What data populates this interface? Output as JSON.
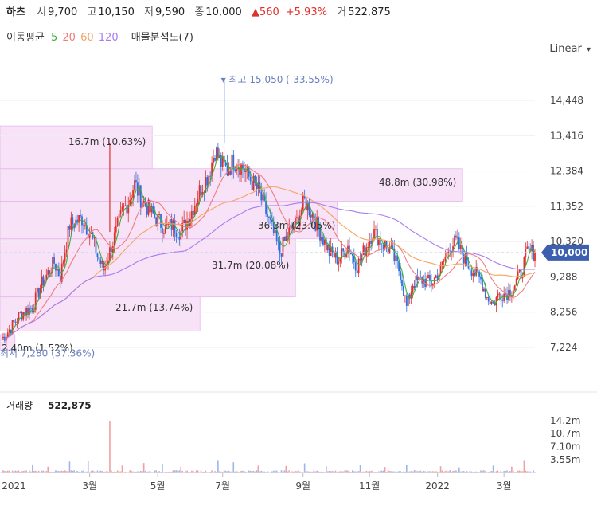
{
  "header": {
    "name": "하츠",
    "open_label": "시",
    "open": "9,700",
    "high_label": "고",
    "high": "10,150",
    "low_label": "저",
    "low": "9,590",
    "close_label": "종",
    "close": "10,000",
    "change": "▲560",
    "change_pct": "+5.93%",
    "volume_label": "거",
    "volume": "522,875"
  },
  "ma_legend": {
    "label": "이동평균",
    "periods": [
      "5",
      "20",
      "60",
      "120"
    ],
    "colors": [
      "#3fae3f",
      "#f07c7c",
      "#f4a460",
      "#a97bf0"
    ],
    "profile_label": "매물분석도(7)"
  },
  "scale_mode": "Linear",
  "colors": {
    "up": "#e0302b",
    "down": "#2f6fe0",
    "profile": "#f4d8f4",
    "current_badge": "#3d5fb0"
  },
  "chart_data": {
    "type": "candlestick",
    "y_ticks": [
      "14,448",
      "13,416",
      "12,384",
      "11,352",
      "10,320",
      "9,288",
      "8,256",
      "7,224"
    ],
    "y_tick_values": [
      14448,
      13416,
      12384,
      11352,
      10320,
      9288,
      8256,
      7224
    ],
    "x_ticks": [
      "2021",
      "3월",
      "5월",
      "7월",
      "9월",
      "11월",
      "2022",
      "3월"
    ],
    "x_tick_index": [
      8,
      57,
      101,
      143,
      195,
      238,
      282,
      325
    ],
    "current_price": "10,000",
    "current_value": 10000,
    "high_annotation": "최고 15,050 (-33.55%)",
    "high_value": 15050,
    "low_annotation": "최저 7,280 (37.36%)",
    "low_value": 7280,
    "volume_title": "거래량",
    "volume_value": "522,875",
    "volume_ticks": [
      "14.2m",
      "10.7m",
      "7.10m",
      "3.55m"
    ],
    "volume_tick_values": [
      14.2,
      10.7,
      7.1,
      3.55
    ],
    "volume_profile": [
      {
        "label": "2.40m (1.52%)",
        "price_low": 7150,
        "price_high": 7600,
        "width": 0.025
      },
      {
        "label": "21.7m (13.74%)",
        "price_low": 7700,
        "price_high": 8700,
        "width": 0.335
      },
      {
        "label": "31.7m (20.08%)",
        "price_low": 8700,
        "price_high": 10400,
        "width": 0.495
      },
      {
        "label": "36.3m (23.05%)",
        "price_low": 10400,
        "price_high": 11500,
        "width": 0.565
      },
      {
        "label": "48.8m (30.98%)",
        "price_low": 11500,
        "price_high": 12450,
        "width": 0.775
      },
      {
        "label": "16.7m (10.63%)",
        "price_low": 12450,
        "price_high": 13700,
        "width": 0.255
      }
    ],
    "close_series": [
      [
        0,
        7450
      ],
      [
        6,
        7800
      ],
      [
        12,
        8200
      ],
      [
        20,
        8400
      ],
      [
        26,
        9100
      ],
      [
        34,
        9700
      ],
      [
        38,
        9300
      ],
      [
        44,
        10800
      ],
      [
        52,
        11000
      ],
      [
        58,
        10500
      ],
      [
        62,
        9900
      ],
      [
        66,
        9500
      ],
      [
        72,
        10300
      ],
      [
        78,
        11200
      ],
      [
        82,
        11500
      ],
      [
        86,
        12000
      ],
      [
        90,
        11600
      ],
      [
        96,
        11200
      ],
      [
        102,
        10900
      ],
      [
        106,
        10700
      ],
      [
        110,
        10800
      ],
      [
        116,
        10600
      ],
      [
        122,
        11100
      ],
      [
        128,
        11800
      ],
      [
        134,
        12300
      ],
      [
        138,
        13000
      ],
      [
        142,
        12600
      ],
      [
        146,
        12400
      ],
      [
        150,
        12700
      ],
      [
        156,
        12500
      ],
      [
        160,
        12200
      ],
      [
        166,
        11800
      ],
      [
        170,
        11300
      ],
      [
        174,
        10800
      ],
      [
        180,
        10000
      ],
      [
        186,
        10600
      ],
      [
        190,
        10800
      ],
      [
        196,
        11500
      ],
      [
        200,
        11200
      ],
      [
        206,
        10600
      ],
      [
        212,
        10000
      ],
      [
        218,
        9800
      ],
      [
        224,
        10200
      ],
      [
        230,
        9600
      ],
      [
        236,
        10200
      ],
      [
        240,
        10600
      ],
      [
        246,
        10300
      ],
      [
        252,
        10000
      ],
      [
        258,
        9400
      ],
      [
        262,
        8400
      ],
      [
        266,
        9100
      ],
      [
        272,
        9200
      ],
      [
        278,
        9100
      ],
      [
        284,
        9500
      ],
      [
        290,
        10200
      ],
      [
        294,
        10300
      ],
      [
        300,
        9800
      ],
      [
        306,
        9400
      ],
      [
        310,
        9200
      ],
      [
        314,
        8700
      ],
      [
        318,
        8500
      ],
      [
        322,
        8800
      ],
      [
        326,
        8800
      ],
      [
        330,
        8900
      ],
      [
        336,
        9400
      ],
      [
        340,
        10000
      ]
    ],
    "volume_spikes": [
      [
        20,
        2.2
      ],
      [
        30,
        1.6
      ],
      [
        44,
        3.0
      ],
      [
        56,
        3.2
      ],
      [
        70,
        14.2
      ],
      [
        78,
        1.9
      ],
      [
        92,
        2.6
      ],
      [
        104,
        2.4
      ],
      [
        116,
        1.6
      ],
      [
        140,
        3.4
      ],
      [
        150,
        2.8
      ],
      [
        166,
        1.9
      ],
      [
        184,
        1.8
      ],
      [
        196,
        2.5
      ],
      [
        210,
        1.7
      ],
      [
        232,
        2.1
      ],
      [
        248,
        1.5
      ],
      [
        262,
        2.0
      ],
      [
        284,
        1.7
      ],
      [
        296,
        1.4
      ],
      [
        318,
        1.9
      ],
      [
        330,
        1.6
      ],
      [
        338,
        3.4
      ]
    ]
  }
}
